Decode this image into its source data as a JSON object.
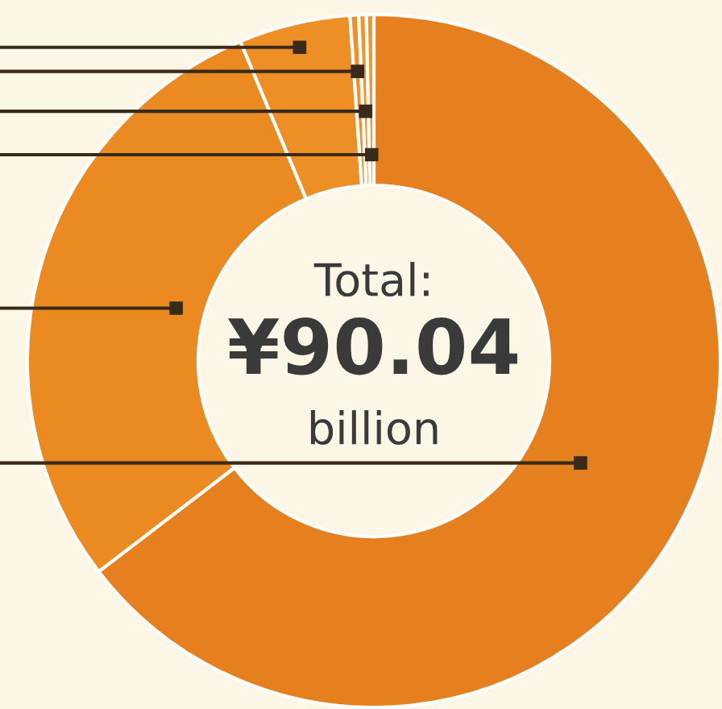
{
  "chart_data": {
    "type": "donut",
    "categories": [
      null,
      null,
      null,
      null,
      null,
      null
    ],
    "values": [
      64.6,
      29.1,
      5.2,
      0.4,
      0.35,
      0.35
    ],
    "colors": [
      "#e6801e",
      "#ec8a22",
      "#ee8f26",
      "#ef9128",
      "#f09329",
      "#f1952b"
    ],
    "annotations": [
      "Total:",
      "¥90.04",
      "billion"
    ],
    "legend": false
  }
}
